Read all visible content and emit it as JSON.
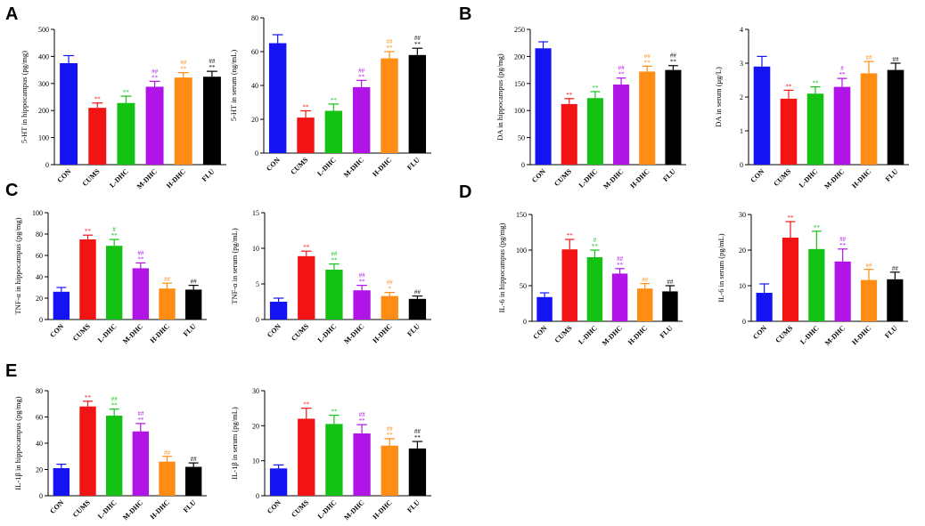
{
  "colors": [
    "#1414f2",
    "#f21414",
    "#14c214",
    "#b114e6",
    "#ff8c14",
    "#000000"
  ],
  "chart_data": [
    {
      "type": "bar",
      "panel": "A",
      "ylabel": "5-HT in hippocampus (pg/mg)",
      "categories": [
        "CON",
        "CUMS",
        "L-DHC",
        "M-DHC",
        "H-DHC",
        "FLU"
      ],
      "values": [
        375,
        210,
        228,
        288,
        322,
        325
      ],
      "errors": [
        28,
        18,
        25,
        20,
        18,
        20
      ],
      "ylim": [
        0,
        500
      ],
      "yticks": [
        0,
        100,
        200,
        300,
        400,
        500
      ],
      "sig_top": [
        "",
        "",
        "",
        "##",
        "##",
        "##"
      ],
      "sig_bottom": [
        "",
        "**",
        "**",
        "**",
        "**",
        "**"
      ]
    },
    {
      "type": "bar",
      "panel": "",
      "ylabel": "5-HT in serum (ng/mL)",
      "categories": [
        "CON",
        "CUMS",
        "L-DHC",
        "M-DHC",
        "H-DHC",
        "FLU"
      ],
      "values": [
        65,
        21,
        25,
        39,
        56,
        58
      ],
      "errors": [
        5,
        4,
        4,
        4,
        4,
        4
      ],
      "ylim": [
        0,
        80
      ],
      "yticks": [
        0,
        20,
        40,
        60,
        80
      ],
      "sig_top": [
        "",
        "",
        "",
        "##",
        "##",
        "##"
      ],
      "sig_bottom": [
        "",
        "**",
        "**",
        "**",
        "**",
        "**"
      ]
    },
    {
      "type": "bar",
      "panel": "B",
      "ylabel": "DA in hippocampus (pg/mg)",
      "categories": [
        "CON",
        "CUMS",
        "L-DHC",
        "M-DHC",
        "H-DHC",
        "FLU"
      ],
      "values": [
        215,
        112,
        123,
        148,
        172,
        175
      ],
      "errors": [
        12,
        10,
        12,
        12,
        10,
        8
      ],
      "ylim": [
        0,
        250
      ],
      "yticks": [
        0,
        50,
        100,
        150,
        200,
        250
      ],
      "sig_top": [
        "",
        "",
        "",
        "##",
        "##",
        "##"
      ],
      "sig_bottom": [
        "",
        "**",
        "**",
        "**",
        "**",
        "**"
      ]
    },
    {
      "type": "bar",
      "panel": "",
      "ylabel": "DA in serum (μg/L)",
      "categories": [
        "CON",
        "CUMS",
        "L-DHC",
        "M-DHC",
        "H-DHC",
        "FLU"
      ],
      "values": [
        2.9,
        1.95,
        2.1,
        2.3,
        2.7,
        2.8
      ],
      "errors": [
        0.3,
        0.25,
        0.2,
        0.25,
        0.35,
        0.2
      ],
      "ylim": [
        0,
        4
      ],
      "yticks": [
        0,
        1,
        2,
        3,
        4
      ],
      "sig_top": [
        "",
        "",
        "",
        "#",
        "##",
        "##"
      ],
      "sig_bottom": [
        "",
        "**",
        "**",
        "**",
        "",
        ""
      ]
    },
    {
      "type": "bar",
      "panel": "C",
      "ylabel": "TNF-α in hippocampus (pg/mg)",
      "categories": [
        "CON",
        "CUMS",
        "L-DHC",
        "M-DHC",
        "H-DHC",
        "FLU"
      ],
      "values": [
        26,
        75,
        69,
        48,
        29,
        28
      ],
      "errors": [
        4,
        4,
        6,
        5,
        5,
        4
      ],
      "ylim": [
        0,
        100
      ],
      "yticks": [
        0,
        20,
        40,
        60,
        80,
        100
      ],
      "sig_top": [
        "",
        "",
        "#",
        "##",
        "##",
        "##"
      ],
      "sig_bottom": [
        "",
        "**",
        "**",
        "**",
        "",
        ""
      ]
    },
    {
      "type": "bar",
      "panel": "",
      "ylabel": "TNF-α in serum (pg/mL)",
      "categories": [
        "CON",
        "CUMS",
        "L-DHC",
        "M-DHC",
        "H-DHC",
        "FLU"
      ],
      "values": [
        2.5,
        8.9,
        7.0,
        4.1,
        3.3,
        2.9
      ],
      "errors": [
        0.5,
        0.7,
        0.8,
        0.7,
        0.5,
        0.4
      ],
      "ylim": [
        0,
        15
      ],
      "yticks": [
        0,
        5,
        10,
        15
      ],
      "sig_top": [
        "",
        "",
        "##",
        "##",
        "##",
        "##"
      ],
      "sig_bottom": [
        "",
        "**",
        "**",
        "**",
        "*",
        ""
      ]
    },
    {
      "type": "bar",
      "panel": "D",
      "ylabel": "IL-6 in hippocampus (pg/mg)",
      "categories": [
        "CON",
        "CUMS",
        "L-DHC",
        "M-DHC",
        "H-DHC",
        "FLU"
      ],
      "values": [
        34,
        101,
        90,
        67,
        46,
        42
      ],
      "errors": [
        6,
        14,
        10,
        7,
        7,
        8
      ],
      "ylim": [
        0,
        150
      ],
      "yticks": [
        0,
        50,
        100,
        150
      ],
      "sig_top": [
        "",
        "",
        "#",
        "##",
        "##",
        "##"
      ],
      "sig_bottom": [
        "",
        "**",
        "**",
        "**",
        "",
        ""
      ]
    },
    {
      "type": "bar",
      "panel": "",
      "ylabel": "IL-6 in serum (pg/mL)",
      "categories": [
        "CON",
        "CUMS",
        "L-DHC",
        "M-DHC",
        "H-DHC",
        "FLU"
      ],
      "values": [
        8,
        23.5,
        20.3,
        16.8,
        11.6,
        11.8
      ],
      "errors": [
        2.5,
        4.5,
        5,
        3.5,
        3,
        2
      ],
      "ylim": [
        0,
        30
      ],
      "yticks": [
        0,
        10,
        20,
        30
      ],
      "sig_top": [
        "",
        "",
        "",
        "##",
        "##",
        "##"
      ],
      "sig_bottom": [
        "",
        "**",
        "**",
        "**",
        "",
        ""
      ]
    },
    {
      "type": "bar",
      "panel": "E",
      "ylabel": "IL-1β in hippocampus (pg/mg)",
      "categories": [
        "CON",
        "CUMS",
        "L-DHC",
        "M-DHC",
        "H-DHC",
        "FLU"
      ],
      "values": [
        21,
        68,
        61,
        49,
        26,
        22
      ],
      "errors": [
        3,
        4,
        5,
        6,
        4,
        3
      ],
      "ylim": [
        0,
        80
      ],
      "yticks": [
        0,
        20,
        40,
        60,
        80
      ],
      "sig_top": [
        "",
        "",
        "##",
        "##",
        "##",
        "##"
      ],
      "sig_bottom": [
        "",
        "**",
        "**",
        "**",
        "",
        ""
      ]
    },
    {
      "type": "bar",
      "panel": "",
      "ylabel": "IL-1β in serum (pg/mL)",
      "categories": [
        "CON",
        "CUMS",
        "L-DHC",
        "M-DHC",
        "H-DHC",
        "FLU"
      ],
      "values": [
        7.8,
        22,
        20.5,
        17.8,
        14.3,
        13.5
      ],
      "errors": [
        1,
        3,
        2.5,
        2.5,
        2,
        2
      ],
      "ylim": [
        0,
        30
      ],
      "yticks": [
        0,
        10,
        20,
        30
      ],
      "sig_top": [
        "",
        "",
        "",
        "##",
        "##",
        "##"
      ],
      "sig_bottom": [
        "",
        "**",
        "**",
        "**",
        "**",
        "**"
      ]
    }
  ]
}
